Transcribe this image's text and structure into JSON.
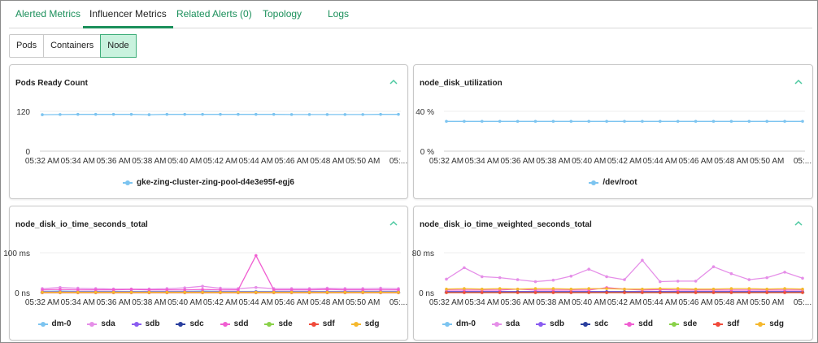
{
  "tabs": [
    {
      "label": "Alerted Metrics",
      "active": false
    },
    {
      "label": "Influencer Metrics",
      "active": true
    },
    {
      "label": "Related Alerts (0)",
      "active": false
    },
    {
      "label": "Topology",
      "active": false
    },
    {
      "label": "Logs",
      "active": false
    }
  ],
  "scope": {
    "options": [
      {
        "label": "Pods",
        "active": false
      },
      {
        "label": "Containers",
        "active": false
      },
      {
        "label": "Node",
        "active": true
      }
    ]
  },
  "x_tick_labels": [
    "05:32 AM",
    "05:34 AM",
    "05:36 AM",
    "05:38 AM",
    "05:40 AM",
    "05:42 AM",
    "05:44 AM",
    "05:46 AM",
    "05:48 AM",
    "05:50 AM",
    "05:..."
  ],
  "chart_data": [
    {
      "type": "line",
      "title": "Pods Ready Count",
      "yticks": [
        "0",
        "120"
      ],
      "ylim": [
        0,
        120
      ],
      "x_count": 21,
      "series": [
        {
          "name": "gke-zing-cluster-zing-pool-d4e3e95f-egj6",
          "color": "#7cc4f0",
          "values": [
            110,
            110.5,
            111,
            111,
            111,
            111,
            110,
            111,
            111,
            111,
            111,
            111,
            111,
            111,
            110.5,
            110.5,
            110.5,
            110.5,
            110.5,
            111,
            111
          ]
        }
      ]
    },
    {
      "type": "line",
      "title": "node_disk_utilization",
      "yticks": [
        "0 %",
        "40 %"
      ],
      "ylim": [
        0,
        40
      ],
      "x_count": 21,
      "series": [
        {
          "name": "/dev/root",
          "color": "#7cc4f0",
          "values": [
            30,
            30,
            30,
            30,
            30,
            30,
            30,
            30,
            30,
            30,
            30,
            30,
            30,
            30,
            30,
            30,
            30,
            30,
            30,
            30,
            30
          ]
        }
      ]
    },
    {
      "type": "line",
      "title": "node_disk_io_time_seconds_total",
      "yticks": [
        "0 ns",
        "100 ms"
      ],
      "ylim": [
        0,
        100
      ],
      "x_count": 21,
      "series": [
        {
          "name": "dm-0",
          "color": "#7cc4f0",
          "values": [
            3,
            4,
            3,
            3,
            3,
            3,
            3,
            3,
            3,
            4,
            3,
            3,
            3,
            3,
            3,
            3,
            3,
            3,
            3,
            3,
            3
          ]
        },
        {
          "name": "sda",
          "color": "#e58ee8",
          "values": [
            10,
            13,
            11,
            10,
            9,
            9,
            9,
            10,
            12,
            16,
            11,
            10,
            13,
            10,
            10,
            10,
            11,
            10,
            10,
            11,
            10
          ]
        },
        {
          "name": "sdb",
          "color": "#8a5cf0",
          "values": [
            2,
            2,
            2,
            2,
            2,
            2,
            2,
            2,
            2,
            2,
            2,
            2,
            2,
            2,
            2,
            2,
            2,
            2,
            2,
            2,
            2
          ]
        },
        {
          "name": "sdc",
          "color": "#2a3f9e",
          "values": [
            1,
            1,
            1,
            1,
            1,
            1,
            1,
            1,
            1,
            1,
            1,
            1,
            1,
            1,
            1,
            1,
            1,
            1,
            1,
            1,
            1
          ]
        },
        {
          "name": "sdd",
          "color": "#f05ed1",
          "values": [
            7,
            8,
            7,
            7,
            7,
            8,
            7,
            7,
            7,
            8,
            7,
            7,
            93,
            7,
            7,
            7,
            8,
            7,
            7,
            7,
            7
          ]
        },
        {
          "name": "sde",
          "color": "#8ad14a",
          "values": [
            0,
            0,
            0,
            0,
            0,
            0,
            0,
            0,
            0,
            0,
            0,
            0,
            0,
            0,
            0,
            0,
            0,
            0,
            0,
            0,
            0
          ]
        },
        {
          "name": "sdf",
          "color": "#f04a3a",
          "values": [
            0,
            0,
            0,
            0,
            0,
            0,
            0,
            0,
            0,
            0,
            0,
            0,
            0,
            0,
            0,
            0,
            0,
            0,
            0,
            0,
            0
          ]
        },
        {
          "name": "sdg",
          "color": "#f5b82e",
          "values": [
            1,
            1,
            1,
            1,
            1,
            1,
            1,
            1,
            1,
            1,
            1,
            1,
            1,
            1,
            1,
            1,
            1,
            1,
            1,
            1,
            1
          ]
        }
      ]
    },
    {
      "type": "line",
      "title": "node_disk_io_time_weighted_seconds_total",
      "yticks": [
        "0 ns",
        "80 ms"
      ],
      "ylim": [
        0,
        80
      ],
      "x_count": 21,
      "series": [
        {
          "name": "dm-0",
          "color": "#7cc4f0",
          "values": [
            2,
            2,
            2,
            2,
            2,
            2,
            2,
            2,
            2,
            2,
            2,
            2,
            2,
            2,
            2,
            2,
            2,
            2,
            2,
            2,
            2
          ]
        },
        {
          "name": "sda",
          "color": "#e58ee8",
          "values": [
            27,
            50,
            32,
            30,
            26,
            22,
            25,
            33,
            47,
            32,
            26,
            65,
            22,
            23,
            23,
            52,
            38,
            26,
            30,
            41,
            29
          ]
        },
        {
          "name": "sdb",
          "color": "#8a5cf0",
          "values": [
            2,
            2,
            2,
            2,
            2,
            2,
            2,
            2,
            2,
            2,
            2,
            2,
            2,
            2,
            2,
            2,
            2,
            2,
            2,
            2,
            2
          ]
        },
        {
          "name": "sdc",
          "color": "#2a3f9e",
          "values": [
            1,
            1,
            1,
            1,
            1,
            1,
            1,
            1,
            1,
            1,
            1,
            1,
            1,
            1,
            1,
            1,
            1,
            1,
            1,
            1,
            1
          ]
        },
        {
          "name": "sdd",
          "color": "#f05ed1",
          "values": [
            5,
            5,
            5,
            5,
            7,
            5,
            5,
            5,
            5,
            10,
            7,
            5,
            6,
            5,
            5,
            5,
            5,
            5,
            5,
            5,
            5
          ]
        },
        {
          "name": "sde",
          "color": "#8ad14a",
          "values": [
            0,
            0,
            0,
            0,
            0,
            0,
            0,
            0,
            0,
            0,
            0,
            0,
            0,
            0,
            0,
            0,
            0,
            0,
            0,
            0,
            0
          ]
        },
        {
          "name": "sdf",
          "color": "#f04a3a",
          "values": [
            0,
            0,
            0,
            0,
            0,
            0,
            0,
            0,
            0,
            0,
            0,
            0,
            0,
            0,
            0,
            0,
            0,
            0,
            0,
            0,
            0
          ]
        },
        {
          "name": "sdg",
          "color": "#f5b82e",
          "values": [
            7,
            8,
            7,
            8,
            7,
            8,
            8,
            7,
            8,
            8,
            7,
            7,
            8,
            8,
            7,
            7,
            8,
            8,
            7,
            8,
            7
          ]
        }
      ]
    }
  ],
  "icons": {
    "collapse": "chevron-up-icon",
    "legend_marker": "line-dot-marker-icon"
  },
  "colors": {
    "accent": "#1a8f5a",
    "active_segment_bg": "#c9f2de",
    "chevron": "#4cc9a0"
  }
}
